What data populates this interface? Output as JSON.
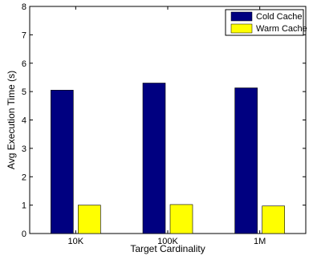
{
  "chart_data": {
    "type": "bar",
    "categories": [
      "10K",
      "100K",
      "1M"
    ],
    "series": [
      {
        "name": "Cold Cache",
        "values": [
          5.05,
          5.3,
          5.13
        ],
        "color": "#000080"
      },
      {
        "name": "Warm Cache",
        "values": [
          1.0,
          1.02,
          0.97
        ],
        "color": "#ffff00"
      }
    ],
    "xlabel": "Target Cardinality",
    "ylabel": "Avg Execution Time (s)",
    "ylim": [
      0,
      8
    ],
    "yticks": [
      0,
      1,
      2,
      3,
      4,
      5,
      6,
      7,
      8
    ],
    "grid": false,
    "legend_position": "top-right"
  }
}
